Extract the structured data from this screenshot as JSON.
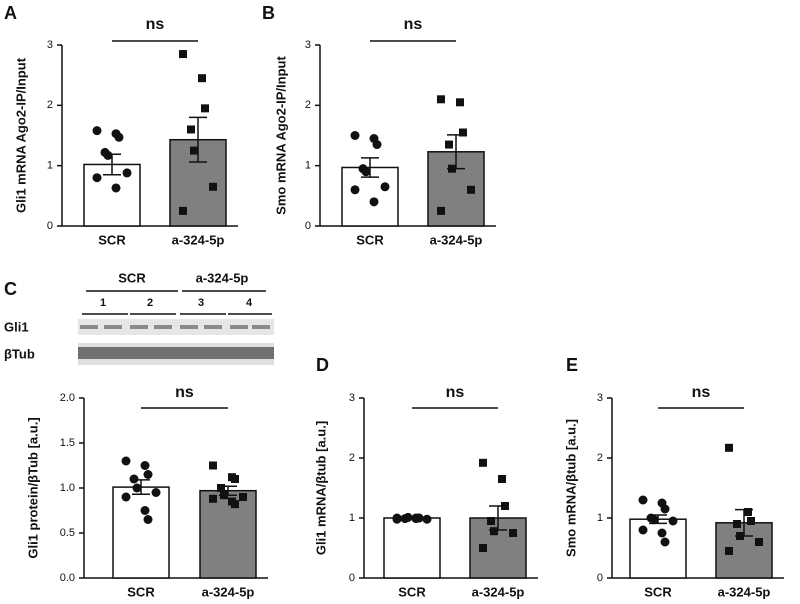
{
  "chart_data": [
    {
      "type": "bar",
      "panel": "A",
      "ylabel": "Gli1 mRNA Ago2-IP/Input",
      "significance": "ns",
      "categories": [
        "SCR",
        "a-324-5p"
      ],
      "values": [
        1.02,
        1.43
      ],
      "errors": [
        0.17,
        0.37
      ],
      "points": [
        [
          1.58,
          1.53,
          1.47,
          1.22,
          1.17,
          0.88,
          0.8,
          0.63
        ],
        [
          2.85,
          2.45,
          1.95,
          1.6,
          1.25,
          0.65,
          0.25
        ]
      ],
      "colors": [
        "#ffffff",
        "#808080"
      ],
      "markers": [
        "circle",
        "square"
      ],
      "ylim": [
        0,
        3
      ],
      "yticks": [
        0,
        1,
        2,
        3
      ]
    },
    {
      "type": "bar",
      "panel": "B",
      "ylabel": "Smo mRNA Ago2-IP/Input",
      "significance": "ns",
      "categories": [
        "SCR",
        "a-324-5p"
      ],
      "values": [
        0.97,
        1.23
      ],
      "errors": [
        0.16,
        0.28
      ],
      "points": [
        [
          1.5,
          1.45,
          1.35,
          0.95,
          0.9,
          0.65,
          0.6,
          0.4
        ],
        [
          2.1,
          2.05,
          1.55,
          1.35,
          0.95,
          0.6,
          0.25
        ]
      ],
      "colors": [
        "#ffffff",
        "#808080"
      ],
      "markers": [
        "circle",
        "square"
      ],
      "ylim": [
        0,
        3
      ],
      "yticks": [
        0,
        1,
        2,
        3
      ]
    },
    {
      "type": "bar",
      "panel": "C",
      "ylabel": "Gli1 protein/βTub [a.u.]",
      "significance": "ns",
      "categories": [
        "SCR",
        "a-324-5p"
      ],
      "values": [
        1.01,
        0.97
      ],
      "errors": [
        0.08,
        0.05
      ],
      "points": [
        [
          1.3,
          1.25,
          1.15,
          1.1,
          1.0,
          0.95,
          0.9,
          0.75,
          0.65
        ],
        [
          1.25,
          1.12,
          1.1,
          1.0,
          0.92,
          0.9,
          0.88,
          0.85,
          0.82
        ]
      ],
      "colors": [
        "#ffffff",
        "#808080"
      ],
      "markers": [
        "circle",
        "square"
      ],
      "ylim": [
        0,
        2
      ],
      "yticks": [
        {
          "value": 0,
          "label": "0.0"
        },
        {
          "value": 0.5,
          "label": "0.5"
        },
        {
          "value": 1,
          "label": "1.0"
        },
        {
          "value": 1.5,
          "label": "1.5"
        },
        {
          "value": 2,
          "label": "2.0"
        }
      ]
    },
    {
      "type": "bar",
      "panel": "D",
      "ylabel": "Gli1 mRNA/βtub [a.u.]",
      "significance": "ns",
      "categories": [
        "SCR",
        "a-324-5p"
      ],
      "values": [
        1.0,
        1.0
      ],
      "errors": [
        0.01,
        0.2
      ],
      "points": [
        [
          0.98,
          1.0,
          1.0,
          0.99,
          1.01,
          0.98,
          1.0,
          0.99,
          1.0
        ],
        [
          1.92,
          1.65,
          1.2,
          0.95,
          0.78,
          0.75,
          0.5
        ]
      ],
      "colors": [
        "#ffffff",
        "#808080"
      ],
      "markers": [
        "circle",
        "square"
      ],
      "ylim": [
        0,
        3
      ],
      "yticks": [
        0,
        1,
        2,
        3
      ]
    },
    {
      "type": "bar",
      "panel": "E",
      "ylabel": "Smo mRNA/βtub [a.u.]",
      "significance": "ns",
      "categories": [
        "SCR",
        "a-324-5p"
      ],
      "values": [
        0.98,
        0.92
      ],
      "errors": [
        0.07,
        0.22
      ],
      "points": [
        [
          1.3,
          1.25,
          1.15,
          1.0,
          0.97,
          0.95,
          0.8,
          0.75,
          0.6
        ],
        [
          2.17,
          1.1,
          0.95,
          0.9,
          0.7,
          0.6,
          0.45
        ]
      ],
      "colors": [
        "#ffffff",
        "#808080"
      ],
      "markers": [
        "circle",
        "square"
      ],
      "ylim": [
        0,
        3
      ],
      "yticks": [
        0,
        1,
        2,
        3
      ]
    }
  ],
  "blot": {
    "groups": [
      "SCR",
      "a-324-5p"
    ],
    "lanes": [
      "1",
      "2",
      "3",
      "4"
    ],
    "rows": [
      "Gli1",
      "βTub"
    ]
  }
}
